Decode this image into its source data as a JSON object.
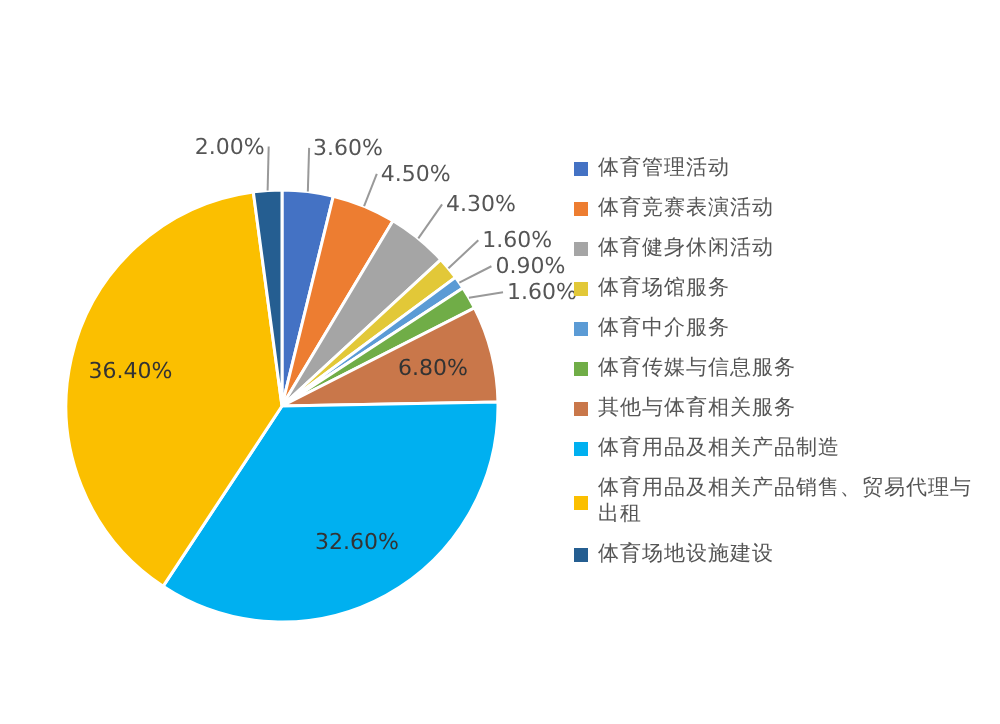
{
  "chart_data": {
    "type": "pie",
    "categories": [
      "体育管理活动",
      "体育竞赛表演活动",
      "体育健身休闲活动",
      "体育场馆服务",
      "体育中介服务",
      "体育传媒与信息服务",
      "其他与体育相关服务",
      "体育用品及相关产品制造",
      "体育用品及相关产品销售、贸易代理与出租",
      "体育场地设施建设"
    ],
    "values": [
      3.6,
      4.5,
      4.3,
      1.6,
      0.9,
      1.6,
      6.8,
      32.6,
      36.4,
      2.0
    ],
    "colors": [
      "#4472c4",
      "#ed7d31",
      "#a5a5a5",
      "#e2c838",
      "#5b9bd5",
      "#70ad47",
      "#c9774a",
      "#00b0f0",
      "#fbbf00",
      "#255e91"
    ],
    "value_labels": [
      "3.60%",
      "4.50%",
      "4.30%",
      "1.60%",
      "0.90%",
      "1.60%",
      "6.80%",
      "32.60%",
      "36.40%",
      "2.00%"
    ],
    "legend": "right"
  }
}
